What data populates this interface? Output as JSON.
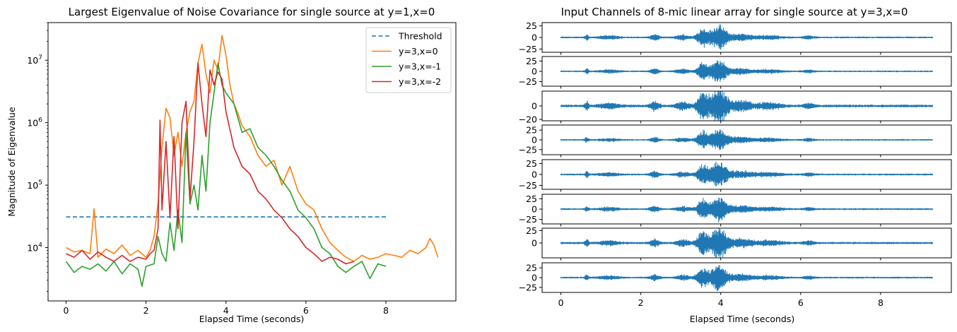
{
  "chart_data": [
    {
      "type": "line",
      "title": "Largest Eigenvalue of Noise Covariance for single source at y=1,x=0",
      "xlabel": "Elapsed Time (seconds)",
      "ylabel": "Magnitude of Eigenvalue",
      "yscale": "log",
      "xlim": [
        -0.45,
        9.75
      ],
      "ylim": [
        1400,
        40000000
      ],
      "xticks": [
        0,
        2,
        4,
        6,
        8
      ],
      "xtick_labels": [
        "0",
        "2",
        "4",
        "6",
        "8"
      ],
      "yticks": [
        10000,
        100000,
        1000000,
        10000000
      ],
      "ytick_labels": [
        "10^4",
        "10^5",
        "10^6",
        "10^7"
      ],
      "legend_position": "top-right",
      "grid": false,
      "series": [
        {
          "name": "Threshold",
          "color": "#1f77b4",
          "dashed": true,
          "x": [
            0,
            8
          ],
          "y": [
            31000,
            31000
          ]
        },
        {
          "name": "y=3,x=0",
          "color": "#ff7f0e",
          "x": [
            0,
            0.2,
            0.4,
            0.6,
            0.7,
            0.8,
            1.0,
            1.2,
            1.4,
            1.6,
            1.8,
            2.0,
            2.1,
            2.2,
            2.3,
            2.4,
            2.5,
            2.6,
            2.7,
            2.8,
            2.9,
            3.0,
            3.1,
            3.2,
            3.3,
            3.4,
            3.5,
            3.6,
            3.7,
            3.8,
            3.9,
            4.0,
            4.1,
            4.2,
            4.3,
            4.4,
            4.6,
            4.8,
            5.0,
            5.2,
            5.4,
            5.6,
            5.8,
            6.0,
            6.2,
            6.4,
            6.6,
            6.8,
            7.0,
            7.2,
            7.4,
            7.6,
            7.8,
            8.0,
            8.2,
            8.4,
            8.6,
            8.8,
            9.0,
            9.1,
            9.2,
            9.3
          ],
          "y": [
            10000,
            8500,
            9000,
            8000,
            42000,
            7000,
            9500,
            8000,
            11000,
            7500,
            9000,
            7000,
            9000,
            15000,
            50000,
            400000,
            1700000,
            1200000,
            300000,
            700000,
            200000,
            700000,
            1500000,
            2200000,
            9000000,
            18000000,
            6000000,
            3000000,
            10000000,
            7000000,
            25000000,
            12000000,
            4000000,
            2000000,
            1400000,
            900000,
            600000,
            300000,
            200000,
            250000,
            100000,
            200000,
            80000,
            50000,
            40000,
            20000,
            12000,
            9000,
            7000,
            6000,
            7500,
            6500,
            7000,
            8000,
            7500,
            7000,
            9000,
            8000,
            10000,
            14000,
            11000,
            7000
          ]
        },
        {
          "name": "y=3,x=-1",
          "color": "#2ca02c",
          "x": [
            0,
            0.2,
            0.4,
            0.6,
            0.8,
            1.0,
            1.2,
            1.4,
            1.6,
            1.8,
            1.9,
            2.0,
            2.2,
            2.3,
            2.4,
            2.5,
            2.6,
            2.7,
            2.8,
            2.9,
            3.0,
            3.1,
            3.2,
            3.3,
            3.4,
            3.5,
            3.6,
            3.7,
            3.8,
            3.9,
            4.0,
            4.2,
            4.4,
            4.6,
            4.8,
            5.0,
            5.2,
            5.4,
            5.6,
            5.8,
            6.0,
            6.2,
            6.4,
            6.6,
            6.8,
            7.0,
            7.2,
            7.4,
            7.6,
            7.8,
            8.0
          ],
          "y": [
            6000,
            4000,
            5000,
            4500,
            5500,
            4200,
            6000,
            3800,
            5500,
            4500,
            2400,
            5000,
            5500,
            15000,
            8000,
            6000,
            25000,
            9000,
            40000,
            12000,
            700000,
            50000,
            100000,
            40000,
            300000,
            80000,
            1000000,
            3000000,
            9000000,
            4000000,
            3000000,
            2000000,
            700000,
            800000,
            400000,
            300000,
            200000,
            120000,
            80000,
            40000,
            30000,
            20000,
            10000,
            8000,
            5000,
            4000,
            5000,
            6000,
            3200,
            5500,
            5000
          ]
        },
        {
          "name": "y=3,x=-2",
          "color": "#d62728",
          "x": [
            0,
            0.2,
            0.4,
            0.6,
            0.8,
            1.0,
            1.2,
            1.4,
            1.6,
            1.8,
            2.0,
            2.1,
            2.2,
            2.3,
            2.35,
            2.4,
            2.5,
            2.6,
            2.7,
            2.8,
            2.9,
            3.0,
            3.1,
            3.2,
            3.3,
            3.4,
            3.5,
            3.6,
            3.7,
            3.8,
            3.9,
            4.0,
            4.2,
            4.4,
            4.6,
            4.8,
            5.0,
            5.2,
            5.4,
            5.6,
            5.8,
            6.0,
            6.2,
            6.4,
            6.6,
            6.8,
            7.0,
            7.2
          ],
          "y": [
            8000,
            7000,
            9000,
            6500,
            8500,
            7000,
            6000,
            7500,
            6000,
            7000,
            6500,
            8000,
            9000,
            20000,
            1100000,
            40000,
            500000,
            30000,
            600000,
            20000,
            1000000,
            2200000,
            60000,
            500000,
            9000000,
            2000000,
            600000,
            7000000,
            4000000,
            6500000,
            5000000,
            1500000,
            400000,
            200000,
            150000,
            80000,
            60000,
            40000,
            30000,
            20000,
            15000,
            10000,
            8000,
            6000,
            7000,
            6500,
            5500,
            6000
          ]
        }
      ]
    },
    {
      "type": "line",
      "title": "Input Channels of 8-mic linear array for single source at y=3,x=0",
      "xlabel": "Elapsed Time (seconds)",
      "xlim": [
        -0.47,
        9.77
      ],
      "xticks": [
        0,
        2,
        4,
        6,
        8
      ],
      "xtick_labels": [
        "0",
        "2",
        "4",
        "6",
        "8"
      ],
      "color": "#1f77b4",
      "duration": 9.3,
      "channels": [
        {
          "ytick_labels": [
            "25",
            "0",
            "−25"
          ],
          "yticks": [
            25,
            0,
            -25
          ],
          "ylim": [
            -32,
            32
          ]
        },
        {
          "ytick_labels": [
            "25",
            "0",
            "−25"
          ],
          "yticks": [
            25,
            0,
            -25
          ],
          "ylim": [
            -36,
            36
          ]
        },
        {
          "ytick_labels": [
            "0",
            "−20"
          ],
          "yticks": [
            0,
            -20
          ],
          "ylim": [
            -22,
            22
          ]
        },
        {
          "ytick_labels": [
            "25",
            "0",
            "−25"
          ],
          "yticks": [
            25,
            0,
            -25
          ],
          "ylim": [
            -38,
            38
          ]
        },
        {
          "ytick_labels": [
            "25",
            "0",
            "−25"
          ],
          "yticks": [
            25,
            0,
            -25
          ],
          "ylim": [
            -34,
            34
          ]
        },
        {
          "ytick_labels": [
            "25",
            "0",
            "−25"
          ],
          "yticks": [
            25,
            0,
            -25
          ],
          "ylim": [
            -36,
            36
          ]
        },
        {
          "ytick_labels": [
            "25",
            "0"
          ],
          "yticks": [
            25,
            0
          ],
          "ylim": [
            -30,
            30
          ]
        },
        {
          "ytick_labels": [
            "25",
            "0",
            "−25"
          ],
          "yticks": [
            25,
            0,
            -25
          ],
          "ylim": [
            -38,
            38
          ]
        }
      ]
    }
  ]
}
